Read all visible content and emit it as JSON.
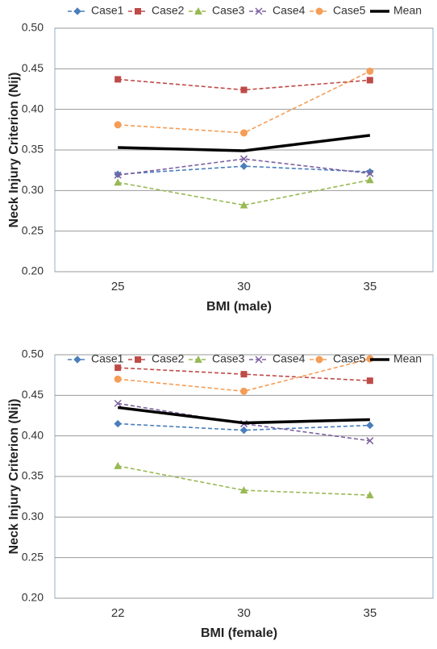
{
  "chart_data": [
    {
      "type": "line",
      "x_label": "BMI (male)",
      "y_label": "Neck Injury Criterion (Nij)",
      "categories": [
        "25",
        "30",
        "35"
      ],
      "ylim": [
        0.2,
        0.5
      ],
      "yticks": [
        {
          "value": 0.2,
          "label": "0.20"
        },
        0.25,
        {
          "value": 0.3,
          "label": "0.30"
        },
        0.35,
        {
          "value": 0.4,
          "label": "0.40"
        },
        0.45,
        {
          "value": 0.5,
          "label": "0.50"
        }
      ],
      "grid": true,
      "series": [
        {
          "name": "Case1",
          "color": "#4a7ebb",
          "marker": "diamond",
          "dashed": true,
          "values": [
            0.32,
            0.33,
            0.323
          ]
        },
        {
          "name": "Case2",
          "color": "#be4b48",
          "marker": "square",
          "dashed": true,
          "values": [
            0.437,
            0.424,
            0.436
          ]
        },
        {
          "name": "Case3",
          "color": "#98b954",
          "marker": "triangle",
          "dashed": true,
          "values": [
            0.31,
            0.282,
            0.313
          ]
        },
        {
          "name": "Case4",
          "color": "#7d60a0",
          "marker": "x",
          "dashed": true,
          "values": [
            0.319,
            0.339,
            0.321
          ]
        },
        {
          "name": "Case5",
          "color": "#f59d56",
          "marker": "circle",
          "dashed": true,
          "values": [
            0.381,
            0.371,
            0.447
          ]
        },
        {
          "name": "Mean",
          "color": "#000000",
          "marker": "none",
          "dashed": false,
          "values": [
            0.353,
            0.349,
            0.368
          ]
        }
      ]
    },
    {
      "type": "line",
      "x_label": "BMI (female)",
      "y_label": "Neck Injury Criterion (Nij)",
      "categories": [
        "22",
        "30",
        "35"
      ],
      "ylim": [
        0.2,
        0.5
      ],
      "yticks": [
        {
          "value": 0.2,
          "label": "0.20"
        },
        0.25,
        {
          "value": 0.3,
          "label": "0.30"
        },
        0.35,
        {
          "value": 0.4,
          "label": "0.40"
        },
        0.45,
        {
          "value": 0.5,
          "label": "0.50"
        }
      ],
      "grid": true,
      "series": [
        {
          "name": "Case1",
          "color": "#4a7ebb",
          "marker": "diamond",
          "dashed": true,
          "values": [
            0.415,
            0.407,
            0.413
          ]
        },
        {
          "name": "Case2",
          "color": "#be4b48",
          "marker": "square",
          "dashed": true,
          "values": [
            0.484,
            0.476,
            0.468
          ]
        },
        {
          "name": "Case3",
          "color": "#98b954",
          "marker": "triangle",
          "dashed": true,
          "values": [
            0.363,
            0.333,
            0.327
          ]
        },
        {
          "name": "Case4",
          "color": "#7d60a0",
          "marker": "x",
          "dashed": true,
          "values": [
            0.44,
            0.415,
            0.394
          ]
        },
        {
          "name": "Case5",
          "color": "#f59d56",
          "marker": "circle",
          "dashed": true,
          "values": [
            0.47,
            0.455,
            0.495
          ]
        },
        {
          "name": "Mean",
          "color": "#000000",
          "marker": "none",
          "dashed": false,
          "values": [
            0.435,
            0.416,
            0.42
          ]
        }
      ]
    }
  ]
}
